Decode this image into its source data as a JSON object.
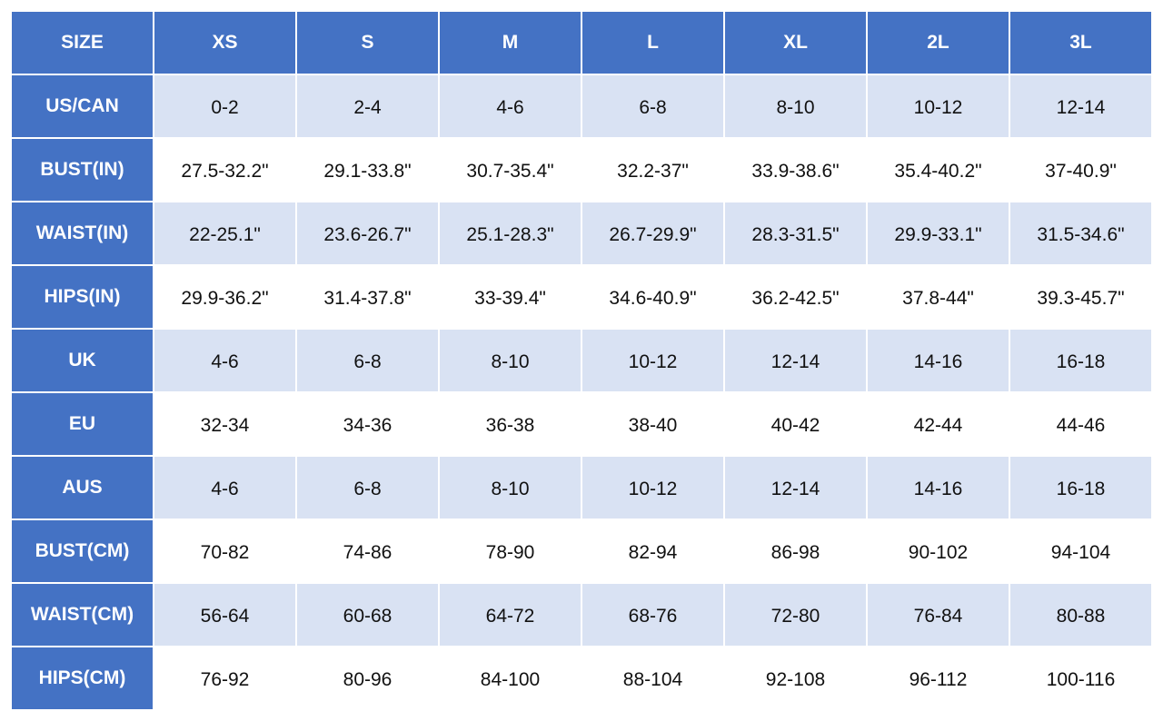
{
  "table": {
    "header": [
      "SIZE",
      "XS",
      "S",
      "M",
      "L",
      "XL",
      "2L",
      "3L"
    ],
    "rows": [
      [
        "US/CAN",
        "0-2",
        "2-4",
        "4-6",
        "6-8",
        "8-10",
        "10-12",
        "12-14"
      ],
      [
        "BUST(IN)",
        "27.5-32.2\"",
        "29.1-33.8\"",
        "30.7-35.4\"",
        "32.2-37\"",
        "33.9-38.6\"",
        "35.4-40.2\"",
        "37-40.9\""
      ],
      [
        "WAIST(IN)",
        "22-25.1\"",
        "23.6-26.7\"",
        "25.1-28.3\"",
        "26.7-29.9\"",
        "28.3-31.5\"",
        "29.9-33.1\"",
        "31.5-34.6\""
      ],
      [
        "HIPS(IN)",
        "29.9-36.2\"",
        "31.4-37.8\"",
        "33-39.4\"",
        "34.6-40.9\"",
        "36.2-42.5\"",
        "37.8-44\"",
        "39.3-45.7\""
      ],
      [
        "UK",
        "4-6",
        "6-8",
        "8-10",
        "10-12",
        "12-14",
        "14-16",
        "16-18"
      ],
      [
        "EU",
        "32-34",
        "34-36",
        "36-38",
        "38-40",
        "40-42",
        "42-44",
        "44-46"
      ],
      [
        "AUS",
        "4-6",
        "6-8",
        "8-10",
        "10-12",
        "12-14",
        "14-16",
        "16-18"
      ],
      [
        "BUST(CM)",
        "70-82",
        "74-86",
        "78-90",
        "82-94",
        "86-98",
        "90-102",
        "94-104"
      ],
      [
        "WAIST(CM)",
        "56-64",
        "60-68",
        "64-72",
        "68-76",
        "72-80",
        "76-84",
        "80-88"
      ],
      [
        "HIPS(CM)",
        "76-92",
        "80-96",
        "84-100",
        "88-104",
        "92-108",
        "96-112",
        "100-116"
      ]
    ]
  }
}
